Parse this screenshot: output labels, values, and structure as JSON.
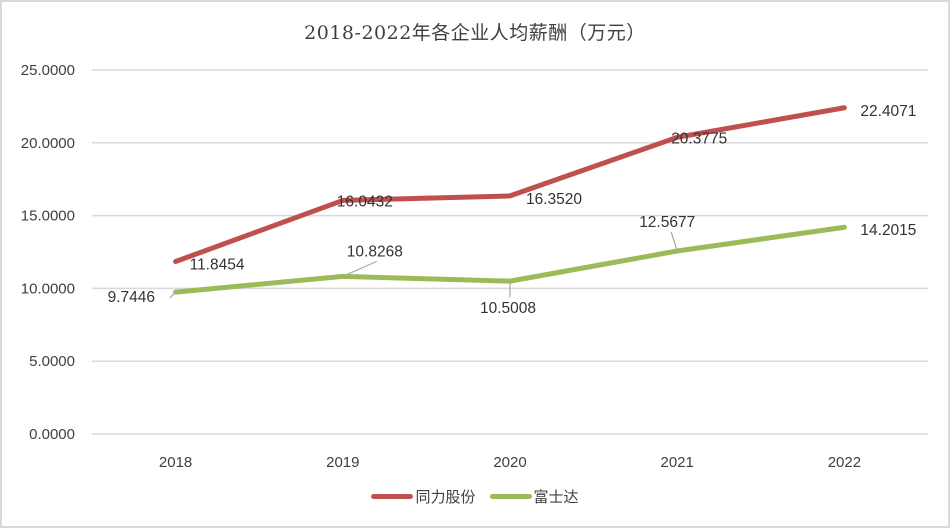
{
  "chart_data": {
    "type": "line",
    "title": "2018-2022年各企业人均薪酬（万元）",
    "xlabel": "",
    "ylabel": "",
    "categories": [
      "2018",
      "2019",
      "2020",
      "2021",
      "2022"
    ],
    "series": [
      {
        "name": "同力股份",
        "color": "#c0504d",
        "values": [
          11.8454,
          16.0432,
          16.352,
          20.3775,
          22.4071
        ],
        "labels": [
          "11.8454",
          "16.0432",
          "16.3520",
          "20.3775",
          "22.4071"
        ]
      },
      {
        "name": "富士达",
        "color": "#9bbb59",
        "values": [
          9.7446,
          10.8268,
          10.5008,
          12.5677,
          14.2015
        ],
        "labels": [
          "9.7446",
          "10.8268",
          "10.5008",
          "12.5677",
          "14.2015"
        ]
      }
    ],
    "yticks": [
      "0.0000",
      "5.0000",
      "10.0000",
      "15.0000",
      "20.0000",
      "25.0000"
    ],
    "ylim": [
      0,
      25
    ],
    "grid": true,
    "legend_position": "bottom"
  }
}
